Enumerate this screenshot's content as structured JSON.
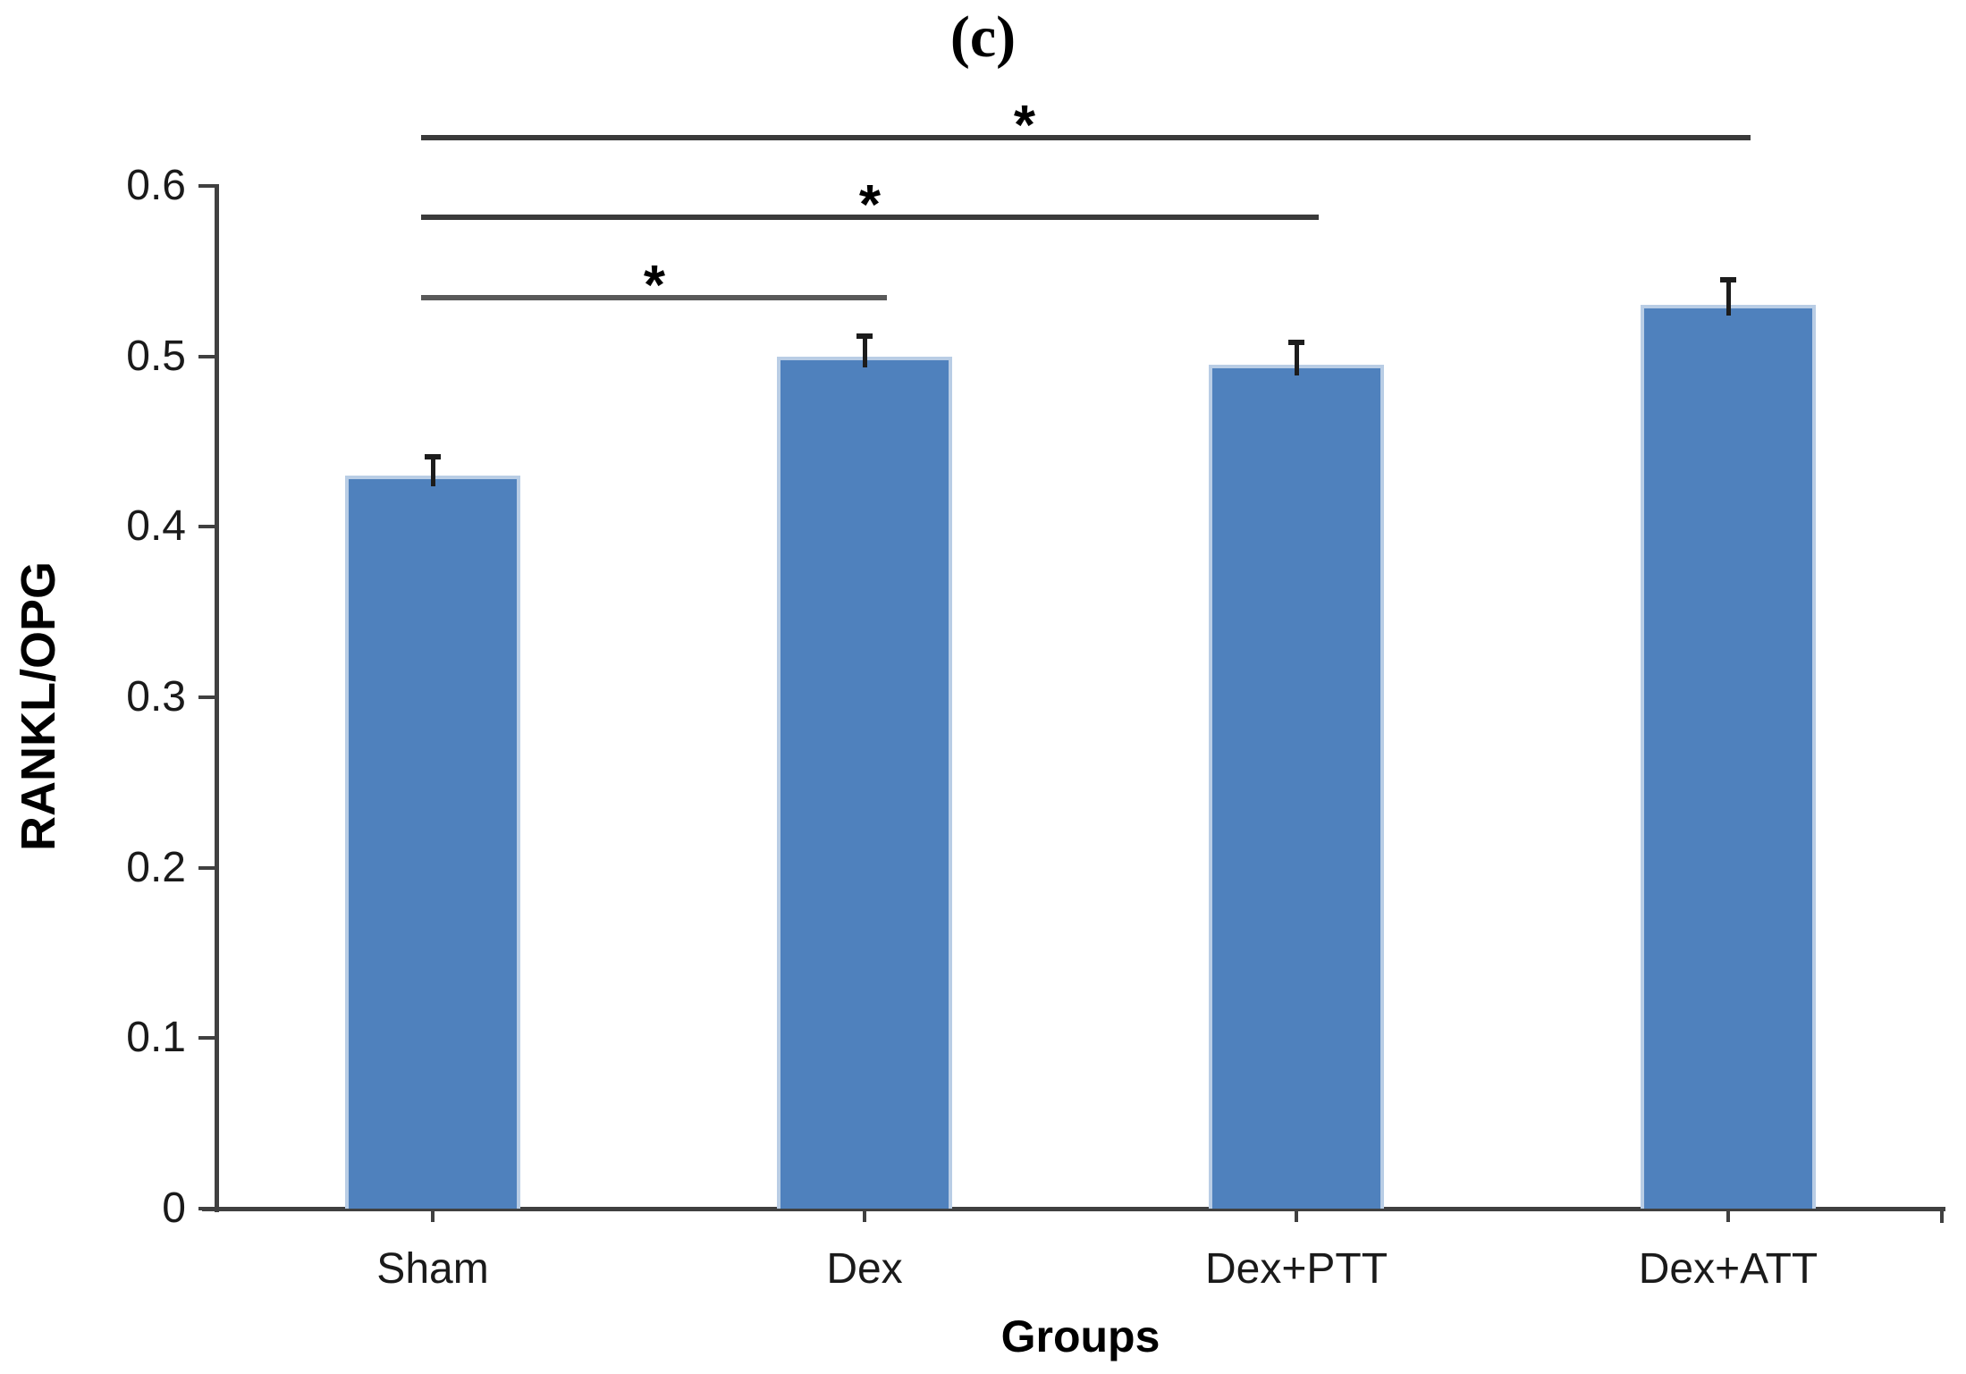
{
  "figure_label": "(c)",
  "colors": {
    "axis": "#404040",
    "bar_fill": "#4F81BD",
    "bar_border": "#B9CDE5",
    "error_bar": "#1c1c1c"
  },
  "chart_data": {
    "type": "bar",
    "title": "(c)",
    "xlabel": "Groups",
    "ylabel": "RANKL/OPG",
    "categories": [
      "Sham",
      "Dex",
      "Dex+PTT",
      "Dex+ATT"
    ],
    "values": [
      0.43,
      0.5,
      0.495,
      0.53
    ],
    "errors": [
      0.011,
      0.012,
      0.013,
      0.015
    ],
    "ylim": [
      0,
      0.6
    ],
    "yticks": [
      0,
      0.1,
      0.2,
      0.3,
      0.4,
      0.5,
      0.6
    ],
    "ytick_labels": [
      "0",
      "0.1",
      "0.2",
      "0.3",
      "0.4",
      "0.5",
      "0.6"
    ],
    "grid": false,
    "legend": null,
    "bar_color": "#4F81BD",
    "bar_border_color": "#B9CDE5",
    "significance": [
      {
        "from": "Sham",
        "to": "Dex",
        "label": "*",
        "height": 0.536,
        "label_pos": 0.5,
        "color": "#595959"
      },
      {
        "from": "Sham",
        "to": "Dex+PTT",
        "label": "*",
        "height": 0.583,
        "label_pos": 0.5,
        "color": "#3a3a3a"
      },
      {
        "from": "Sham",
        "to": "Dex+ATT",
        "label": "*",
        "height": 0.63,
        "label_pos": 0.454,
        "color": "#3a3a3a"
      }
    ]
  }
}
